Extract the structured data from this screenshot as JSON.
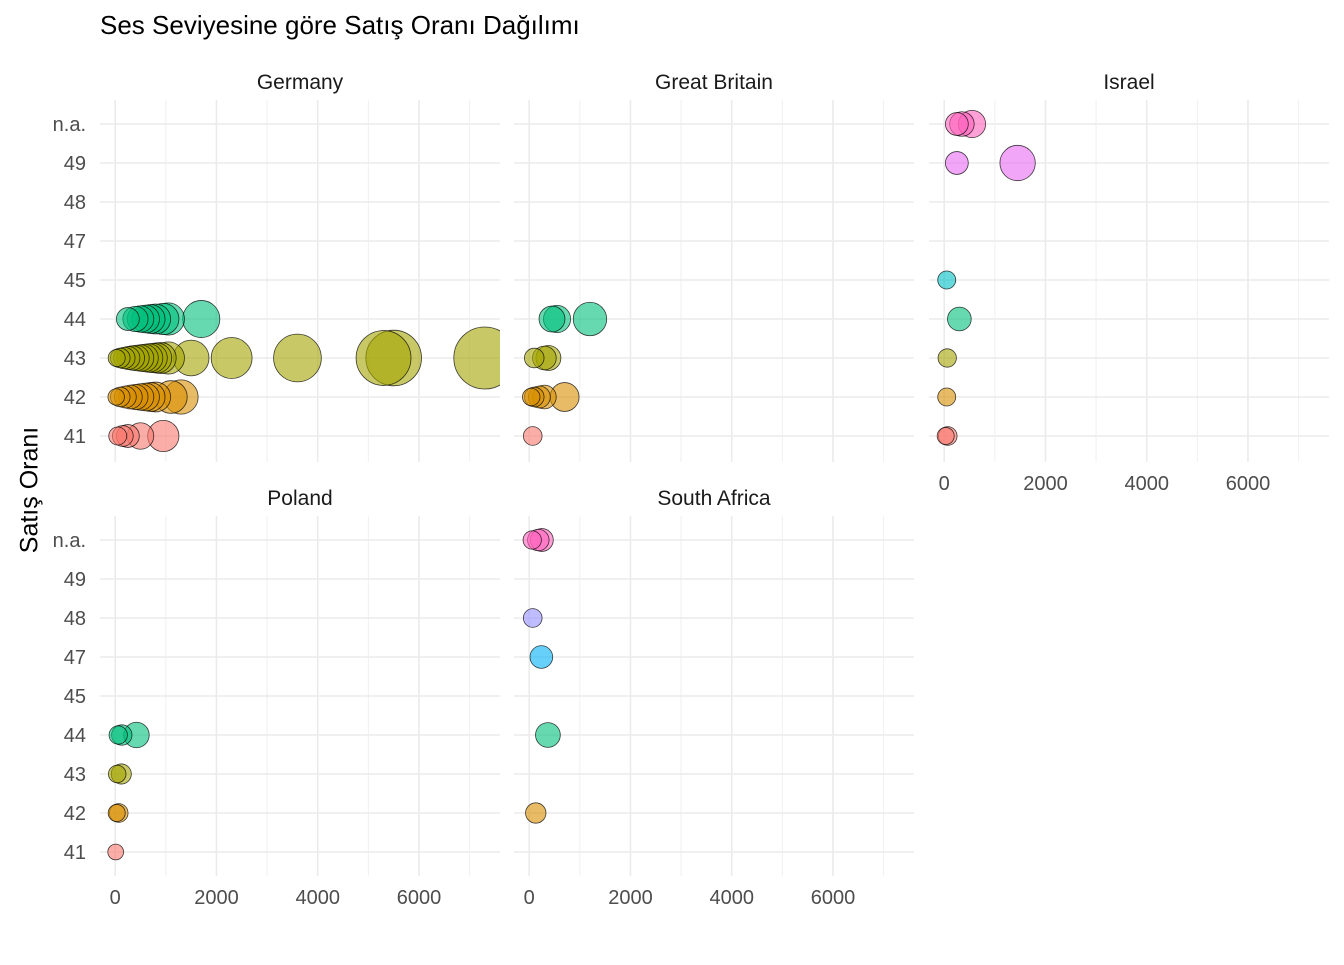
{
  "chart_data": {
    "type": "scatter",
    "title": "Ses Seviyesine göre Satış Oranı Dağılımı",
    "ylabel": "Satış Oranı",
    "xlabel": "",
    "y_categories": [
      "41",
      "42",
      "43",
      "44",
      "45",
      "47",
      "48",
      "49",
      "n.a."
    ],
    "x_ticks": [
      0,
      2000,
      4000,
      6000
    ],
    "xlim": [
      -300,
      7600
    ],
    "grid": true,
    "legend": "none",
    "category_colors": {
      "41": "#F8766D",
      "42": "#D89000",
      "43": "#A3A500",
      "44": "#00BF7D",
      "45": "#00BFC4",
      "47": "#00B0F6",
      "48": "#9590FF",
      "49": "#E76BF3",
      "n.a.": "#FF62BC"
    },
    "facets": [
      {
        "name": "Germany",
        "points": [
          {
            "y": "44",
            "x": 250
          },
          {
            "y": "44",
            "x": 400
          },
          {
            "y": "44",
            "x": 500
          },
          {
            "y": "44",
            "x": 600
          },
          {
            "y": "44",
            "x": 700
          },
          {
            "y": "44",
            "x": 800
          },
          {
            "y": "44",
            "x": 950
          },
          {
            "y": "44",
            "x": 1050
          },
          {
            "y": "44",
            "x": 1700
          },
          {
            "y": "43",
            "x": 30
          },
          {
            "y": "43",
            "x": 100
          },
          {
            "y": "43",
            "x": 180
          },
          {
            "y": "43",
            "x": 260
          },
          {
            "y": "43",
            "x": 340
          },
          {
            "y": "43",
            "x": 420
          },
          {
            "y": "43",
            "x": 500
          },
          {
            "y": "43",
            "x": 580
          },
          {
            "y": "43",
            "x": 660
          },
          {
            "y": "43",
            "x": 740
          },
          {
            "y": "43",
            "x": 820
          },
          {
            "y": "43",
            "x": 900
          },
          {
            "y": "43",
            "x": 1050
          },
          {
            "y": "43",
            "x": 1500
          },
          {
            "y": "43",
            "x": 2300
          },
          {
            "y": "43",
            "x": 3600
          },
          {
            "y": "43",
            "x": 5300
          },
          {
            "y": "43",
            "x": 5500
          },
          {
            "y": "43",
            "x": 7300
          },
          {
            "y": "42",
            "x": 20
          },
          {
            "y": "42",
            "x": 100
          },
          {
            "y": "42",
            "x": 200
          },
          {
            "y": "42",
            "x": 300
          },
          {
            "y": "42",
            "x": 400
          },
          {
            "y": "42",
            "x": 500
          },
          {
            "y": "42",
            "x": 600
          },
          {
            "y": "42",
            "x": 700
          },
          {
            "y": "42",
            "x": 800
          },
          {
            "y": "42",
            "x": 1100
          },
          {
            "y": "42",
            "x": 1300
          },
          {
            "y": "41",
            "x": 50
          },
          {
            "y": "41",
            "x": 150
          },
          {
            "y": "41",
            "x": 250
          },
          {
            "y": "41",
            "x": 500
          },
          {
            "y": "41",
            "x": 950
          }
        ]
      },
      {
        "name": "Great Britain",
        "points": [
          {
            "y": "44",
            "x": 450
          },
          {
            "y": "44",
            "x": 550
          },
          {
            "y": "44",
            "x": 1200
          },
          {
            "y": "43",
            "x": 100
          },
          {
            "y": "43",
            "x": 300
          },
          {
            "y": "43",
            "x": 380
          },
          {
            "y": "42",
            "x": 40
          },
          {
            "y": "42",
            "x": 100
          },
          {
            "y": "42",
            "x": 200
          },
          {
            "y": "42",
            "x": 300
          },
          {
            "y": "42",
            "x": 700
          },
          {
            "y": "41",
            "x": 70
          }
        ]
      },
      {
        "name": "Israel",
        "points": [
          {
            "y": "n.a.",
            "x": 250
          },
          {
            "y": "n.a.",
            "x": 350
          },
          {
            "y": "n.a.",
            "x": 550
          },
          {
            "y": "49",
            "x": 250
          },
          {
            "y": "49",
            "x": 1450
          },
          {
            "y": "45",
            "x": 50
          },
          {
            "y": "44",
            "x": 300
          },
          {
            "y": "43",
            "x": 60
          },
          {
            "y": "42",
            "x": 50
          },
          {
            "y": "41",
            "x": 30
          },
          {
            "y": "41",
            "x": 70
          }
        ]
      },
      {
        "name": "Poland",
        "points": [
          {
            "y": "44",
            "x": 60
          },
          {
            "y": "44",
            "x": 130
          },
          {
            "y": "44",
            "x": 420
          },
          {
            "y": "43",
            "x": 40
          },
          {
            "y": "43",
            "x": 120
          },
          {
            "y": "42",
            "x": 30
          },
          {
            "y": "42",
            "x": 70
          },
          {
            "y": "41",
            "x": 10
          }
        ]
      },
      {
        "name": "South Africa",
        "points": [
          {
            "y": "n.a.",
            "x": 60
          },
          {
            "y": "n.a.",
            "x": 180
          },
          {
            "y": "n.a.",
            "x": 250
          },
          {
            "y": "48",
            "x": 70
          },
          {
            "y": "47",
            "x": 240
          },
          {
            "y": "44",
            "x": 370
          },
          {
            "y": "42",
            "x": 130
          }
        ]
      }
    ]
  }
}
